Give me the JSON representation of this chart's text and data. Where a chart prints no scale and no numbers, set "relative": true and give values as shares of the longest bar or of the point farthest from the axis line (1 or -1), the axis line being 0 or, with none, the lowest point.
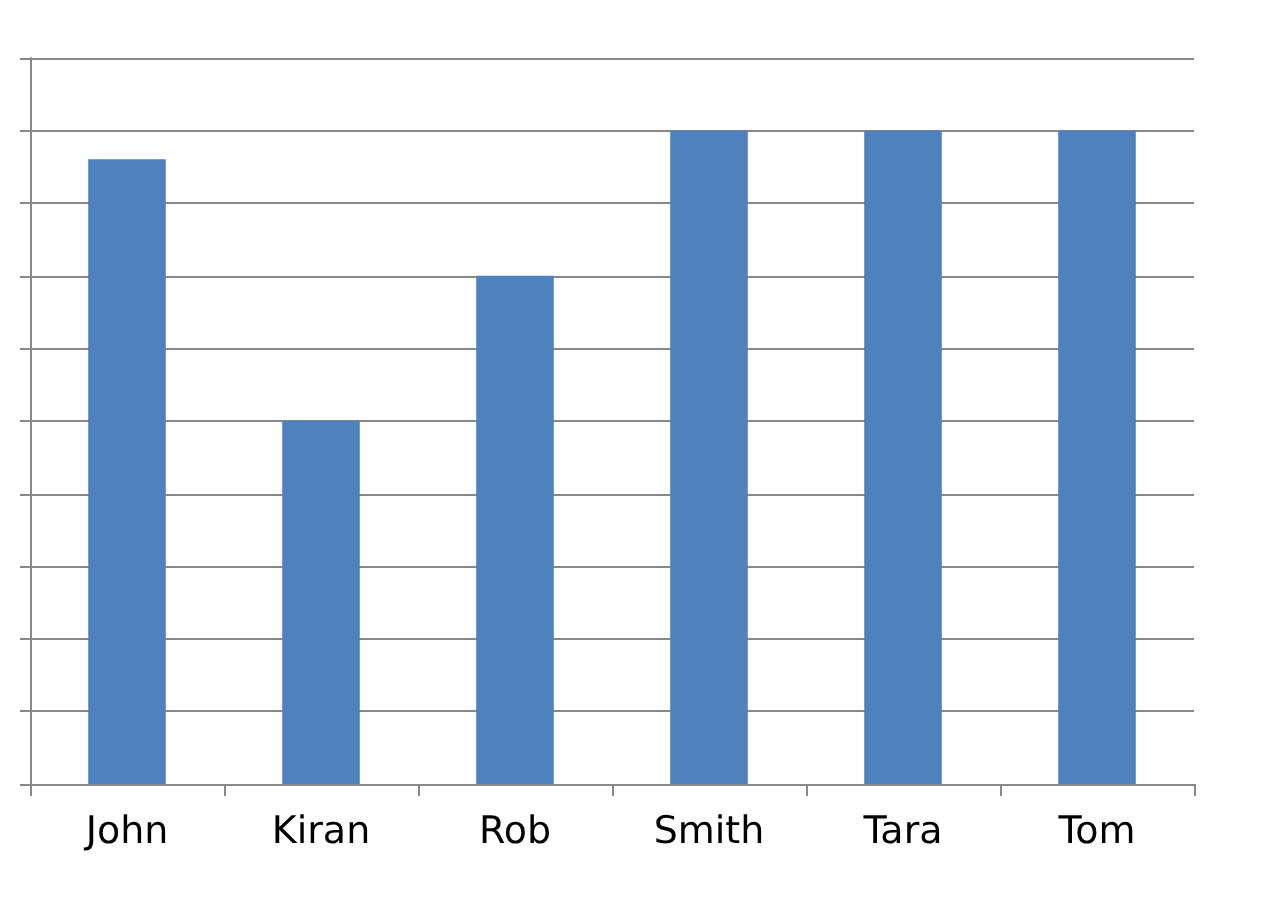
{
  "chart_data": {
    "type": "bar",
    "relative": true,
    "categories": [
      "John",
      "Kiran",
      "Rob",
      "Smith",
      "Tara",
      "Tom"
    ],
    "values": [
      0.956,
      0.556,
      0.778,
      1,
      1,
      1
    ],
    "color": "#4f81bd",
    "grid": "y"
  }
}
